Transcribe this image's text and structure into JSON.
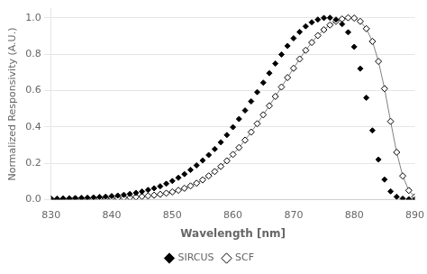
{
  "chart_data": {
    "type": "scatter",
    "xlabel": "Wavelength [nm]",
    "ylabel": "Normalized Responsivity (A.U.)",
    "xlim": [
      830,
      890
    ],
    "ylim": [
      0,
      1.05
    ],
    "xticks": [
      830,
      840,
      850,
      860,
      870,
      880,
      890
    ],
    "yticks": [
      {
        "value": 0,
        "label": "0.0"
      },
      0.2,
      0.4,
      0.6,
      0.8,
      {
        "value": 1.0,
        "label": "1.0"
      }
    ],
    "grid": "y",
    "legend": "bottom",
    "x": [
      830,
      831,
      832,
      833,
      834,
      835,
      836,
      837,
      838,
      839,
      840,
      841,
      842,
      843,
      844,
      845,
      846,
      847,
      848,
      849,
      850,
      851,
      852,
      853,
      854,
      855,
      856,
      857,
      858,
      859,
      860,
      861,
      862,
      863,
      864,
      865,
      866,
      867,
      868,
      869,
      870,
      871,
      872,
      873,
      874,
      875,
      876,
      877,
      878,
      879,
      880,
      881,
      882,
      883,
      884,
      885,
      886,
      887,
      888,
      889,
      890
    ],
    "series": [
      {
        "name": "SIRCUS",
        "color": "#000000",
        "marker": "diamond",
        "line_style": "none",
        "values": [
          0.005,
          0.005,
          0.006,
          0.007,
          0.008,
          0.009,
          0.01,
          0.012,
          0.014,
          0.016,
          0.019,
          0.022,
          0.026,
          0.031,
          0.037,
          0.044,
          0.053,
          0.062,
          0.073,
          0.087,
          0.102,
          0.12,
          0.14,
          0.163,
          0.188,
          0.215,
          0.245,
          0.278,
          0.315,
          0.355,
          0.398,
          0.443,
          0.49,
          0.54,
          0.591,
          0.643,
          0.695,
          0.748,
          0.798,
          0.845,
          0.887,
          0.922,
          0.953,
          0.975,
          0.99,
          0.999,
          1.0,
          0.99,
          0.965,
          0.92,
          0.84,
          0.72,
          0.56,
          0.38,
          0.22,
          0.11,
          0.045,
          0.015,
          0.005,
          0.002,
          0.001
        ]
      },
      {
        "name": "SCF",
        "color": "#000000",
        "marker": "open_diamond",
        "line_style": "solid",
        "values": [
          0.002,
          0.002,
          0.003,
          0.003,
          0.004,
          0.004,
          0.005,
          0.005,
          0.006,
          0.007,
          0.008,
          0.009,
          0.01,
          0.012,
          0.014,
          0.017,
          0.02,
          0.024,
          0.029,
          0.035,
          0.042,
          0.051,
          0.062,
          0.075,
          0.09,
          0.108,
          0.13,
          0.154,
          0.182,
          0.213,
          0.248,
          0.286,
          0.327,
          0.371,
          0.417,
          0.466,
          0.516,
          0.567,
          0.619,
          0.671,
          0.722,
          0.773,
          0.821,
          0.864,
          0.902,
          0.934,
          0.96,
          0.98,
          0.993,
          1.0,
          0.998,
          0.98,
          0.94,
          0.87,
          0.76,
          0.61,
          0.43,
          0.26,
          0.13,
          0.05,
          0.015
        ]
      }
    ]
  }
}
